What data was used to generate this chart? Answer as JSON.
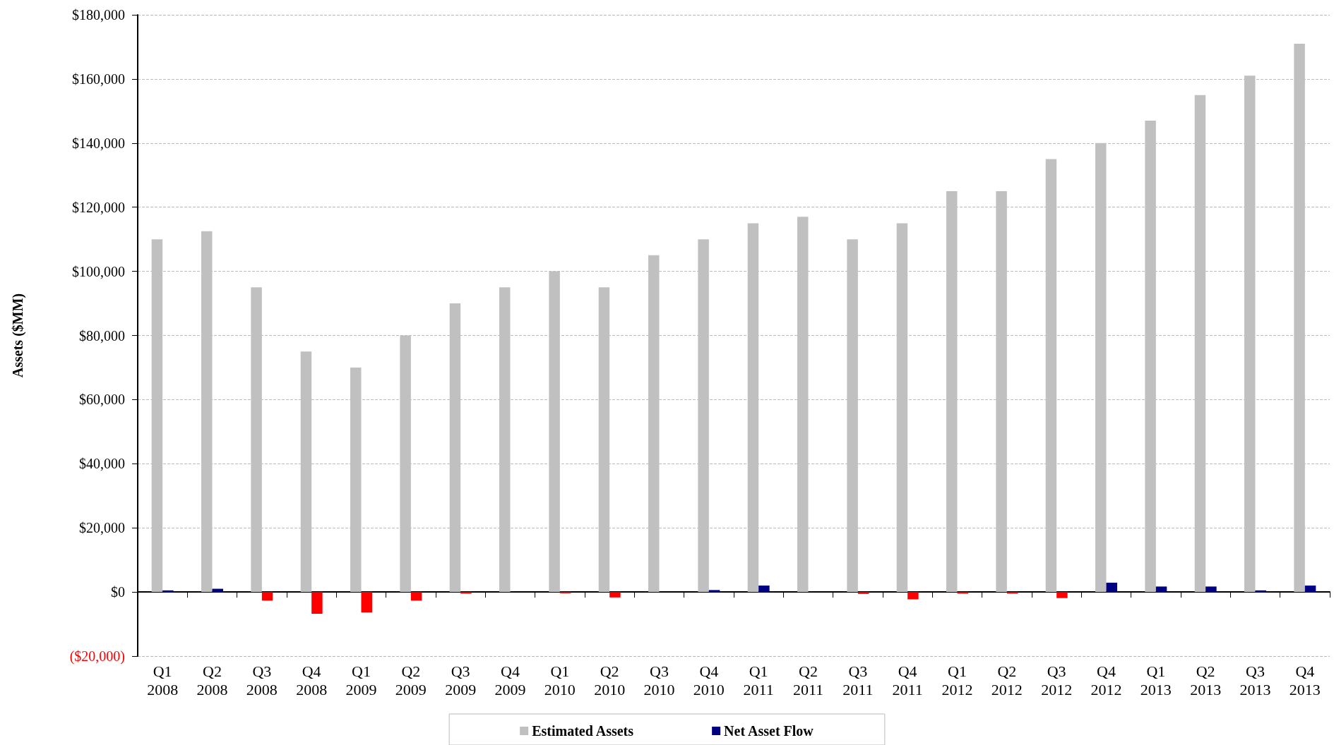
{
  "chart_data": {
    "type": "bar",
    "ylabel": "Assets ($MM)",
    "categories": [
      "Q1 2008",
      "Q2 2008",
      "Q3 2008",
      "Q4 2008",
      "Q1 2009",
      "Q2 2009",
      "Q3 2009",
      "Q4 2009",
      "Q1 2010",
      "Q2 2010",
      "Q3 2010",
      "Q4 2010",
      "Q1 2011",
      "Q2 2011",
      "Q3 2011",
      "Q4 2011",
      "Q1 2012",
      "Q2 2012",
      "Q3 2012",
      "Q4 2012",
      "Q1 2013",
      "Q2 2013",
      "Q3 2013",
      "Q4 2013"
    ],
    "series": [
      {
        "name": "Estimated Assets",
        "color": "#c0c0c0",
        "values": [
          110000,
          112500,
          95000,
          75000,
          70000,
          80000,
          90000,
          95000,
          100000,
          95000,
          105000,
          110000,
          115000,
          117000,
          110000,
          115000,
          125000,
          125000,
          135000,
          140000,
          147000,
          155000,
          161000,
          171000
        ]
      },
      {
        "name": "Net Asset Flow",
        "color": "#000080",
        "colors": [
          "#000080",
          "#000080",
          "#ff0000",
          "#ff0000",
          "#ff0000",
          "#ff0000",
          "#ff0000",
          "#000080",
          "#ff0000",
          "#ff0000",
          "#000080",
          "#000080",
          "#000080",
          "#000080",
          "#ff0000",
          "#ff0000",
          "#ff0000",
          "#ff0000",
          "#ff0000",
          "#000080",
          "#000080",
          "#000080",
          "#000080",
          "#000080"
        ],
        "values": [
          500,
          1000,
          -2700,
          -6800,
          -6400,
          -2700,
          -500,
          null,
          -400,
          -1700,
          null,
          600,
          2000,
          null,
          -600,
          -2300,
          -500,
          -500,
          -1900,
          2900,
          1700,
          1700,
          500,
          2000
        ]
      }
    ],
    "ylim": [
      -20000,
      180000
    ],
    "yticks": [
      {
        "value": -20000,
        "label": "($20,000)"
      },
      {
        "value": 0,
        "label": "$0"
      },
      {
        "value": 20000,
        "label": "$20,000"
      },
      {
        "value": 40000,
        "label": "$40,000"
      },
      {
        "value": 60000,
        "label": "$60,000"
      },
      {
        "value": 80000,
        "label": "$80,000"
      },
      {
        "value": 100000,
        "label": "$100,000"
      },
      {
        "value": 120000,
        "label": "$120,000"
      },
      {
        "value": 140000,
        "label": "$140,000"
      },
      {
        "value": 160000,
        "label": "$160,000"
      },
      {
        "value": 180000,
        "label": "$180,000"
      }
    ],
    "grid": "y",
    "legend": "bottom"
  }
}
